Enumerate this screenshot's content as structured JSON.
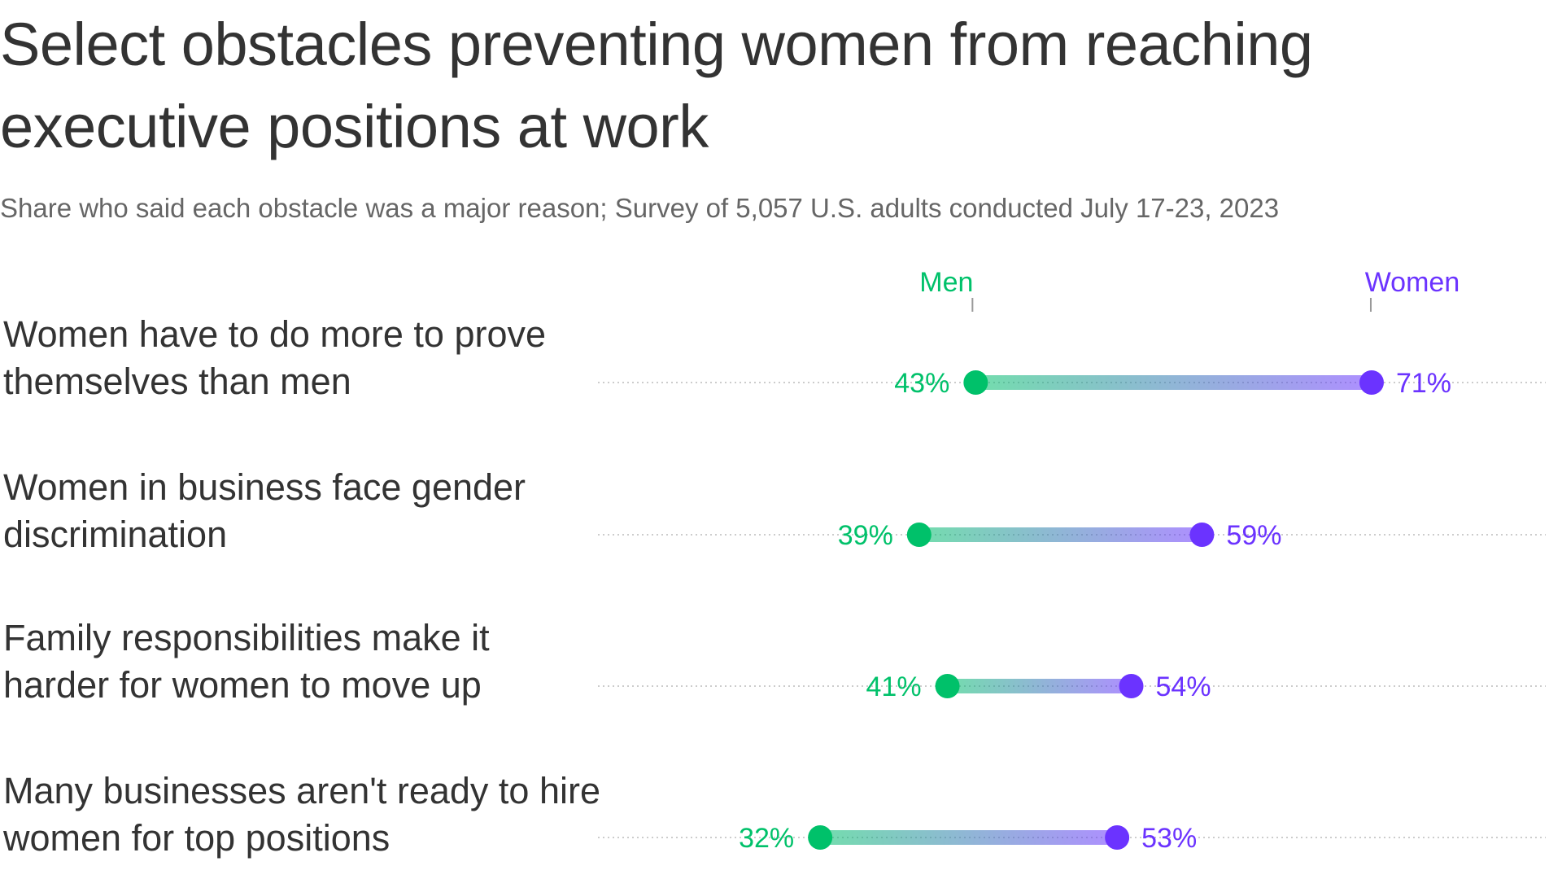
{
  "title": "Select obstacles preventing women from reaching executive positions at work",
  "subtitle": "Share who said each obstacle was a major reason; Survey of 5,057 U.S. adults conducted July 17-23, 2023",
  "colors": {
    "men": "#00c16a",
    "women": "#6b33ff",
    "text": "#333333",
    "subtext": "#666666",
    "gridline": "#cccccc"
  },
  "chart_data": {
    "type": "dumbbell",
    "title": "Select obstacles preventing women from reaching executive positions at work",
    "subtitle": "Share who said each obstacle was a major reason; Survey of 5,057 U.S. adults conducted July 17-23, 2023",
    "unit": "%",
    "legend": [
      "Men",
      "Women"
    ],
    "legend_placement": "top, above first row at each endpoint",
    "xlim": [
      20,
      80
    ],
    "grid": false,
    "categories": [
      "Women have to do more to prove themselves than men",
      "Women in business face gender discrimination",
      "Family responsibilities make it harder for women to move up",
      "Many businesses aren't ready to hire women for top positions"
    ],
    "series": [
      {
        "name": "Men",
        "values": [
          43,
          39,
          41,
          32
        ]
      },
      {
        "name": "Women",
        "values": [
          71,
          59,
          54,
          53
        ]
      }
    ],
    "value_labels": {
      "Men": [
        "43%",
        "39%",
        "41%",
        "32%"
      ],
      "Women": [
        "71%",
        "59%",
        "54%",
        "53%"
      ]
    }
  }
}
